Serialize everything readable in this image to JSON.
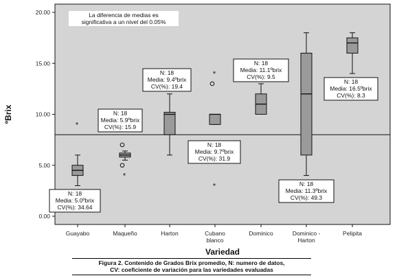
{
  "chart_data": {
    "type": "boxplot",
    "title": "",
    "xlabel": "Variedad",
    "ylabel": "ºBrix",
    "ylim": [
      0,
      20
    ],
    "yticks": [
      "0.00",
      "5.00",
      "10.00",
      "15.00",
      "20.00"
    ],
    "reference_line": 8,
    "annotation": {
      "lines": [
        "La diferencia de medias es",
        "significativa a un nivel del 0.05%"
      ]
    },
    "categories": [
      {
        "name": [
          "Guayabo"
        ],
        "box": {
          "min": 3,
          "q1": 4,
          "median": 4.5,
          "q3": 5,
          "max": 6
        },
        "outliers": [
          {
            "value": 9,
            "symbol": "star"
          }
        ],
        "stats": [
          "N: 18",
          "Media: 5.0ºbrix",
          "CV(%): 34.64"
        ]
      },
      {
        "name": [
          "Maqueño"
        ],
        "box": {
          "min": 5.5,
          "q1": 5.8,
          "median": 6,
          "q3": 6.2,
          "max": 6.4
        },
        "outliers": [
          {
            "value": 7,
            "symbol": "circle"
          },
          {
            "value": 5,
            "symbol": "circle"
          },
          {
            "value": 4,
            "symbol": "star"
          }
        ],
        "stats": [
          "N: 18",
          "Media: 5.9ºbrix",
          "CV(%): 15.9"
        ]
      },
      {
        "name": [
          "Harton"
        ],
        "box": {
          "min": 6,
          "q1": 8,
          "median": 10,
          "q3": 10.2,
          "max": 12
        },
        "outliers": [],
        "stats": [
          "N: 18",
          "Media: 9.4ºbrix",
          "CV(%): 19.4"
        ]
      },
      {
        "name": [
          "Cubano",
          "blanco"
        ],
        "box": {
          "min": 9,
          "q1": 9,
          "median": 10,
          "q3": 10,
          "max": 10
        },
        "outliers": [
          {
            "value": 14,
            "symbol": "star"
          },
          {
            "value": 13,
            "symbol": "circle"
          },
          {
            "value": 3,
            "symbol": "star"
          }
        ],
        "stats": [
          "N: 18",
          "Media: 9.7ºbrix",
          "CV(%): 31.9"
        ]
      },
      {
        "name": [
          "Dominico"
        ],
        "box": {
          "min": 10,
          "q1": 10,
          "median": 11,
          "q3": 12,
          "max": 13
        },
        "outliers": [],
        "stats": [
          "N: 18",
          "Media: 11.1ºbrix",
          "CV(%): 9.5"
        ]
      },
      {
        "name": [
          "Dominico -",
          "Harton"
        ],
        "box": {
          "min": 4,
          "q1": 6,
          "median": 12,
          "q3": 16,
          "max": 18
        },
        "outliers": [],
        "stats": [
          "N: 18",
          "Media: 11.3ºbrix",
          "CV(%): 49.3"
        ]
      },
      {
        "name": [
          "Pelipita"
        ],
        "box": {
          "min": 14,
          "q1": 16,
          "median": 17,
          "q3": 17.5,
          "max": 18
        },
        "outliers": [],
        "stats": [
          "N: 18",
          "Media: 16.5ºbrix",
          "CV(%): 8.3"
        ]
      }
    ],
    "colors": {
      "plot_bg": "#d4d4d4",
      "box_fill": "#9a9a9a",
      "ink": "#111111",
      "label_bg": "#ffffff"
    },
    "grid": false
  },
  "caption": {
    "line1": "Figura 2. Contenido de Grados Brix promedio, N: numero de datos,",
    "line2": "CV: coeficiente de variación para las variedades evaluadas"
  }
}
